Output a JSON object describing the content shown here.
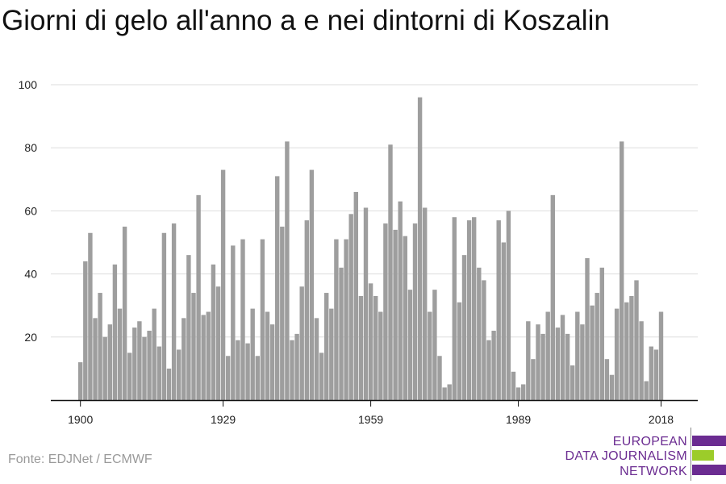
{
  "chart_data": {
    "type": "bar",
    "title": "Giorni di gelo all'anno a e nei dintorni di Koszalin",
    "xlabel": "",
    "ylabel": "",
    "x_start": 1900,
    "x_end": 2021,
    "x_ticks": [
      "1900",
      "1929",
      "1959",
      "1989",
      "2018"
    ],
    "y_ticks": [
      "20",
      "40",
      "60",
      "80",
      "100"
    ],
    "ylim": [
      0,
      100
    ],
    "grid": true,
    "bar_color": "#9e9e9e",
    "values": [
      12,
      44,
      53,
      26,
      34,
      20,
      24,
      43,
      29,
      55,
      15,
      23,
      25,
      20,
      22,
      29,
      17,
      53,
      10,
      56,
      16,
      26,
      46,
      34,
      65,
      27,
      28,
      43,
      36,
      73,
      14,
      49,
      19,
      51,
      18,
      29,
      14,
      51,
      28,
      24,
      71,
      55,
      82,
      19,
      21,
      36,
      57,
      73,
      26,
      15,
      34,
      29,
      51,
      42,
      51,
      59,
      66,
      33,
      61,
      37,
      33,
      28,
      56,
      81,
      54,
      63,
      52,
      35,
      56,
      96,
      61,
      28,
      35,
      14,
      4,
      5,
      58,
      31,
      46,
      57,
      58,
      42,
      38,
      19,
      22,
      57,
      50,
      60,
      9,
      4,
      5,
      25,
      13,
      24,
      21,
      28,
      65,
      23,
      27,
      21,
      11,
      28,
      24,
      45,
      30,
      34,
      42,
      13,
      8,
      29,
      82,
      31,
      33,
      38,
      25,
      6,
      17,
      16,
      28
    ]
  },
  "source": "Fonte: EDJNet / ECMWF",
  "logo": {
    "line1": "EUROPEAN",
    "line2": "DATA JOURNALISM",
    "line3": "NETWORK",
    "color_purple": "#6b2c91",
    "color_green": "#9ccc2a"
  }
}
